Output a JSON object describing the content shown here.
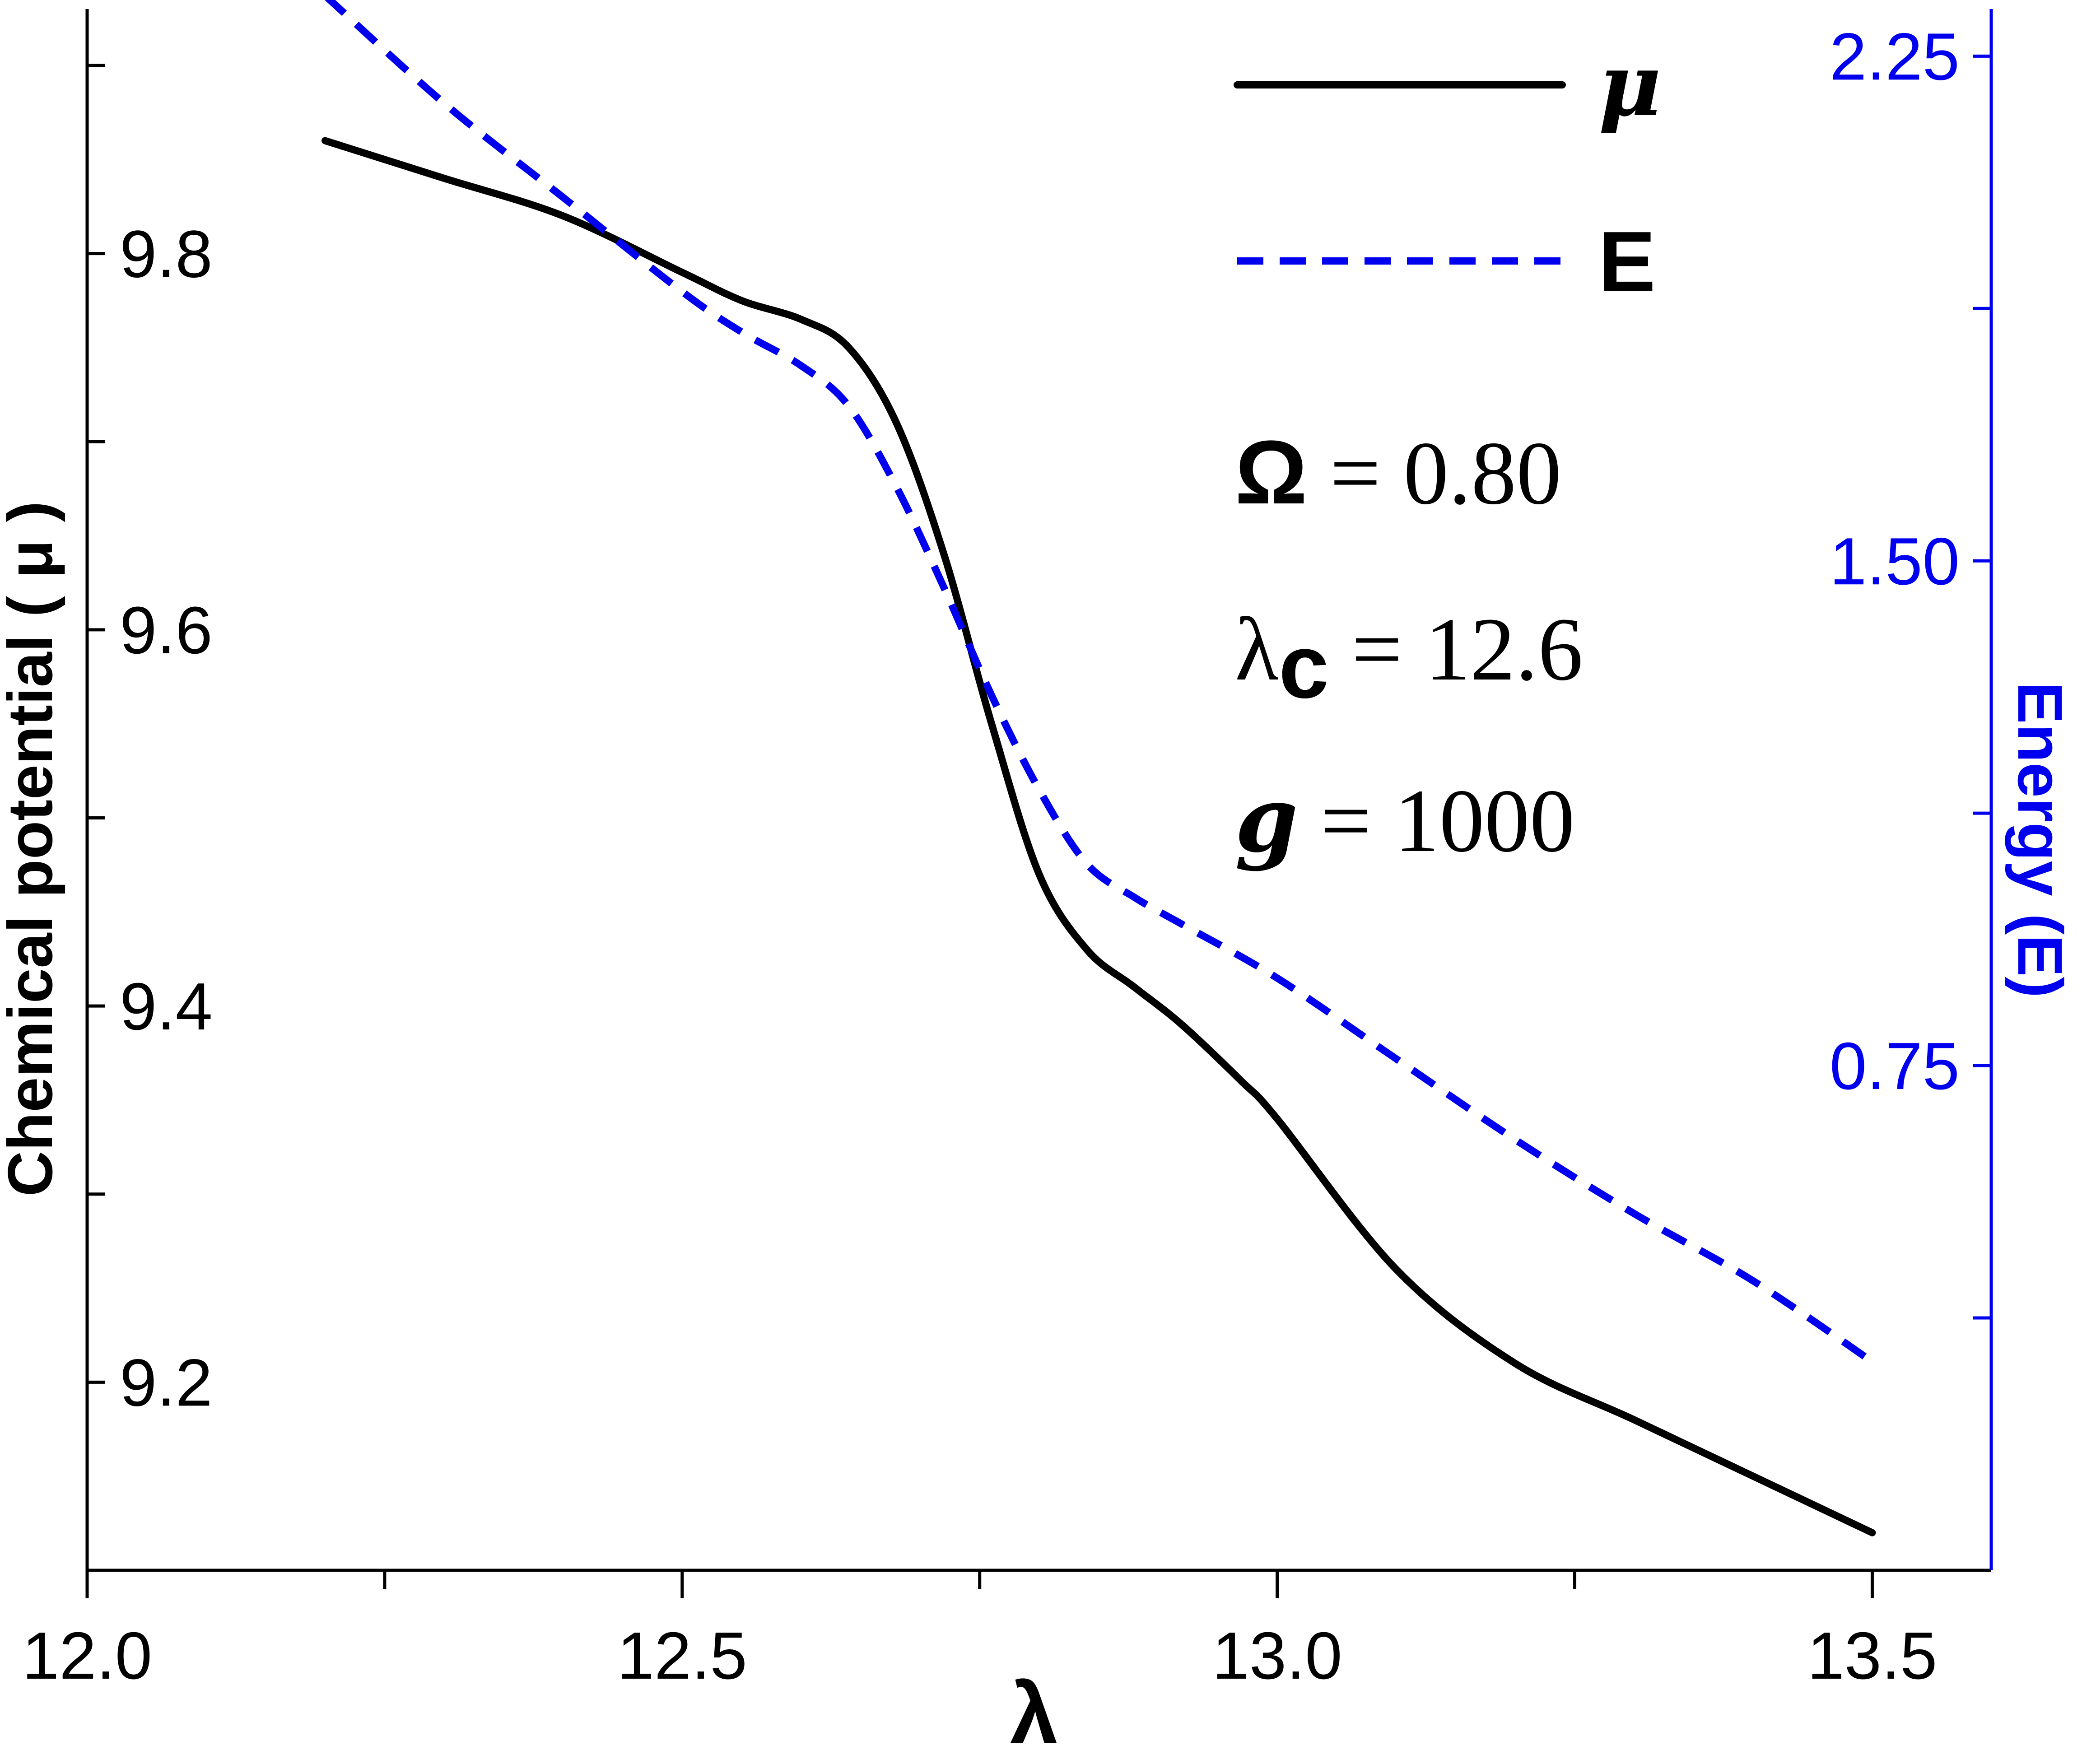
{
  "chart_data": {
    "type": "line",
    "xlabel": "λ",
    "ylabel": "Chemical potential ( μ )",
    "y2label": "Energy (E)",
    "xlim": [
      12.0,
      13.6
    ],
    "ylim": [
      9.1,
      9.93
    ],
    "y2lim": [
      0.0,
      2.32
    ],
    "x_ticks": [
      "12.0",
      "12.5",
      "13.0",
      "13.5"
    ],
    "y_ticks": [
      "9.2",
      "9.4",
      "9.6",
      "9.8"
    ],
    "y2_ticks": [
      "0.75",
      "1.50",
      "2.25"
    ],
    "series": [
      {
        "name": "μ",
        "axis": "left",
        "color": "#000000",
        "style": "solid",
        "x": [
          12.2,
          12.3,
          12.4,
          12.5,
          12.55,
          12.6,
          12.64,
          12.68,
          12.72,
          12.76,
          12.8,
          12.84,
          12.88,
          12.92,
          12.97,
          13.0,
          13.1,
          13.2,
          13.3,
          13.4,
          13.5
        ],
        "y": [
          9.86,
          9.84,
          9.82,
          9.79,
          9.775,
          9.765,
          9.75,
          9.71,
          9.64,
          9.55,
          9.47,
          9.43,
          9.41,
          9.39,
          9.36,
          9.34,
          9.26,
          9.21,
          9.18,
          9.15,
          9.12
        ]
      },
      {
        "name": "E",
        "axis": "right",
        "color": "#0000ee",
        "style": "dashed",
        "x": [
          12.2,
          12.3,
          12.4,
          12.5,
          12.55,
          12.6,
          12.64,
          12.68,
          12.72,
          12.76,
          12.8,
          12.84,
          12.88,
          12.92,
          13.0,
          13.1,
          13.2,
          13.3,
          13.4,
          13.5
        ],
        "y": [
          2.34,
          2.18,
          2.04,
          1.9,
          1.84,
          1.79,
          1.73,
          1.61,
          1.46,
          1.3,
          1.16,
          1.05,
          1.0,
          0.96,
          0.88,
          0.76,
          0.64,
          0.53,
          0.43,
          0.31
        ]
      }
    ],
    "legend": {
      "placement": "top-right",
      "items": [
        {
          "label": "μ",
          "style": "solid",
          "color": "#000000"
        },
        {
          "label": "E",
          "style": "dashed",
          "color": "#0000ee"
        }
      ]
    },
    "annotations": {
      "omega": {
        "symbol": "Ω",
        "text": " = 0.80"
      },
      "lambda_c": {
        "symbol": "λ",
        "sub": "c",
        "text": " = 12.6"
      },
      "g": {
        "symbol": "g",
        "text": " = 1000"
      }
    },
    "grid": false
  }
}
